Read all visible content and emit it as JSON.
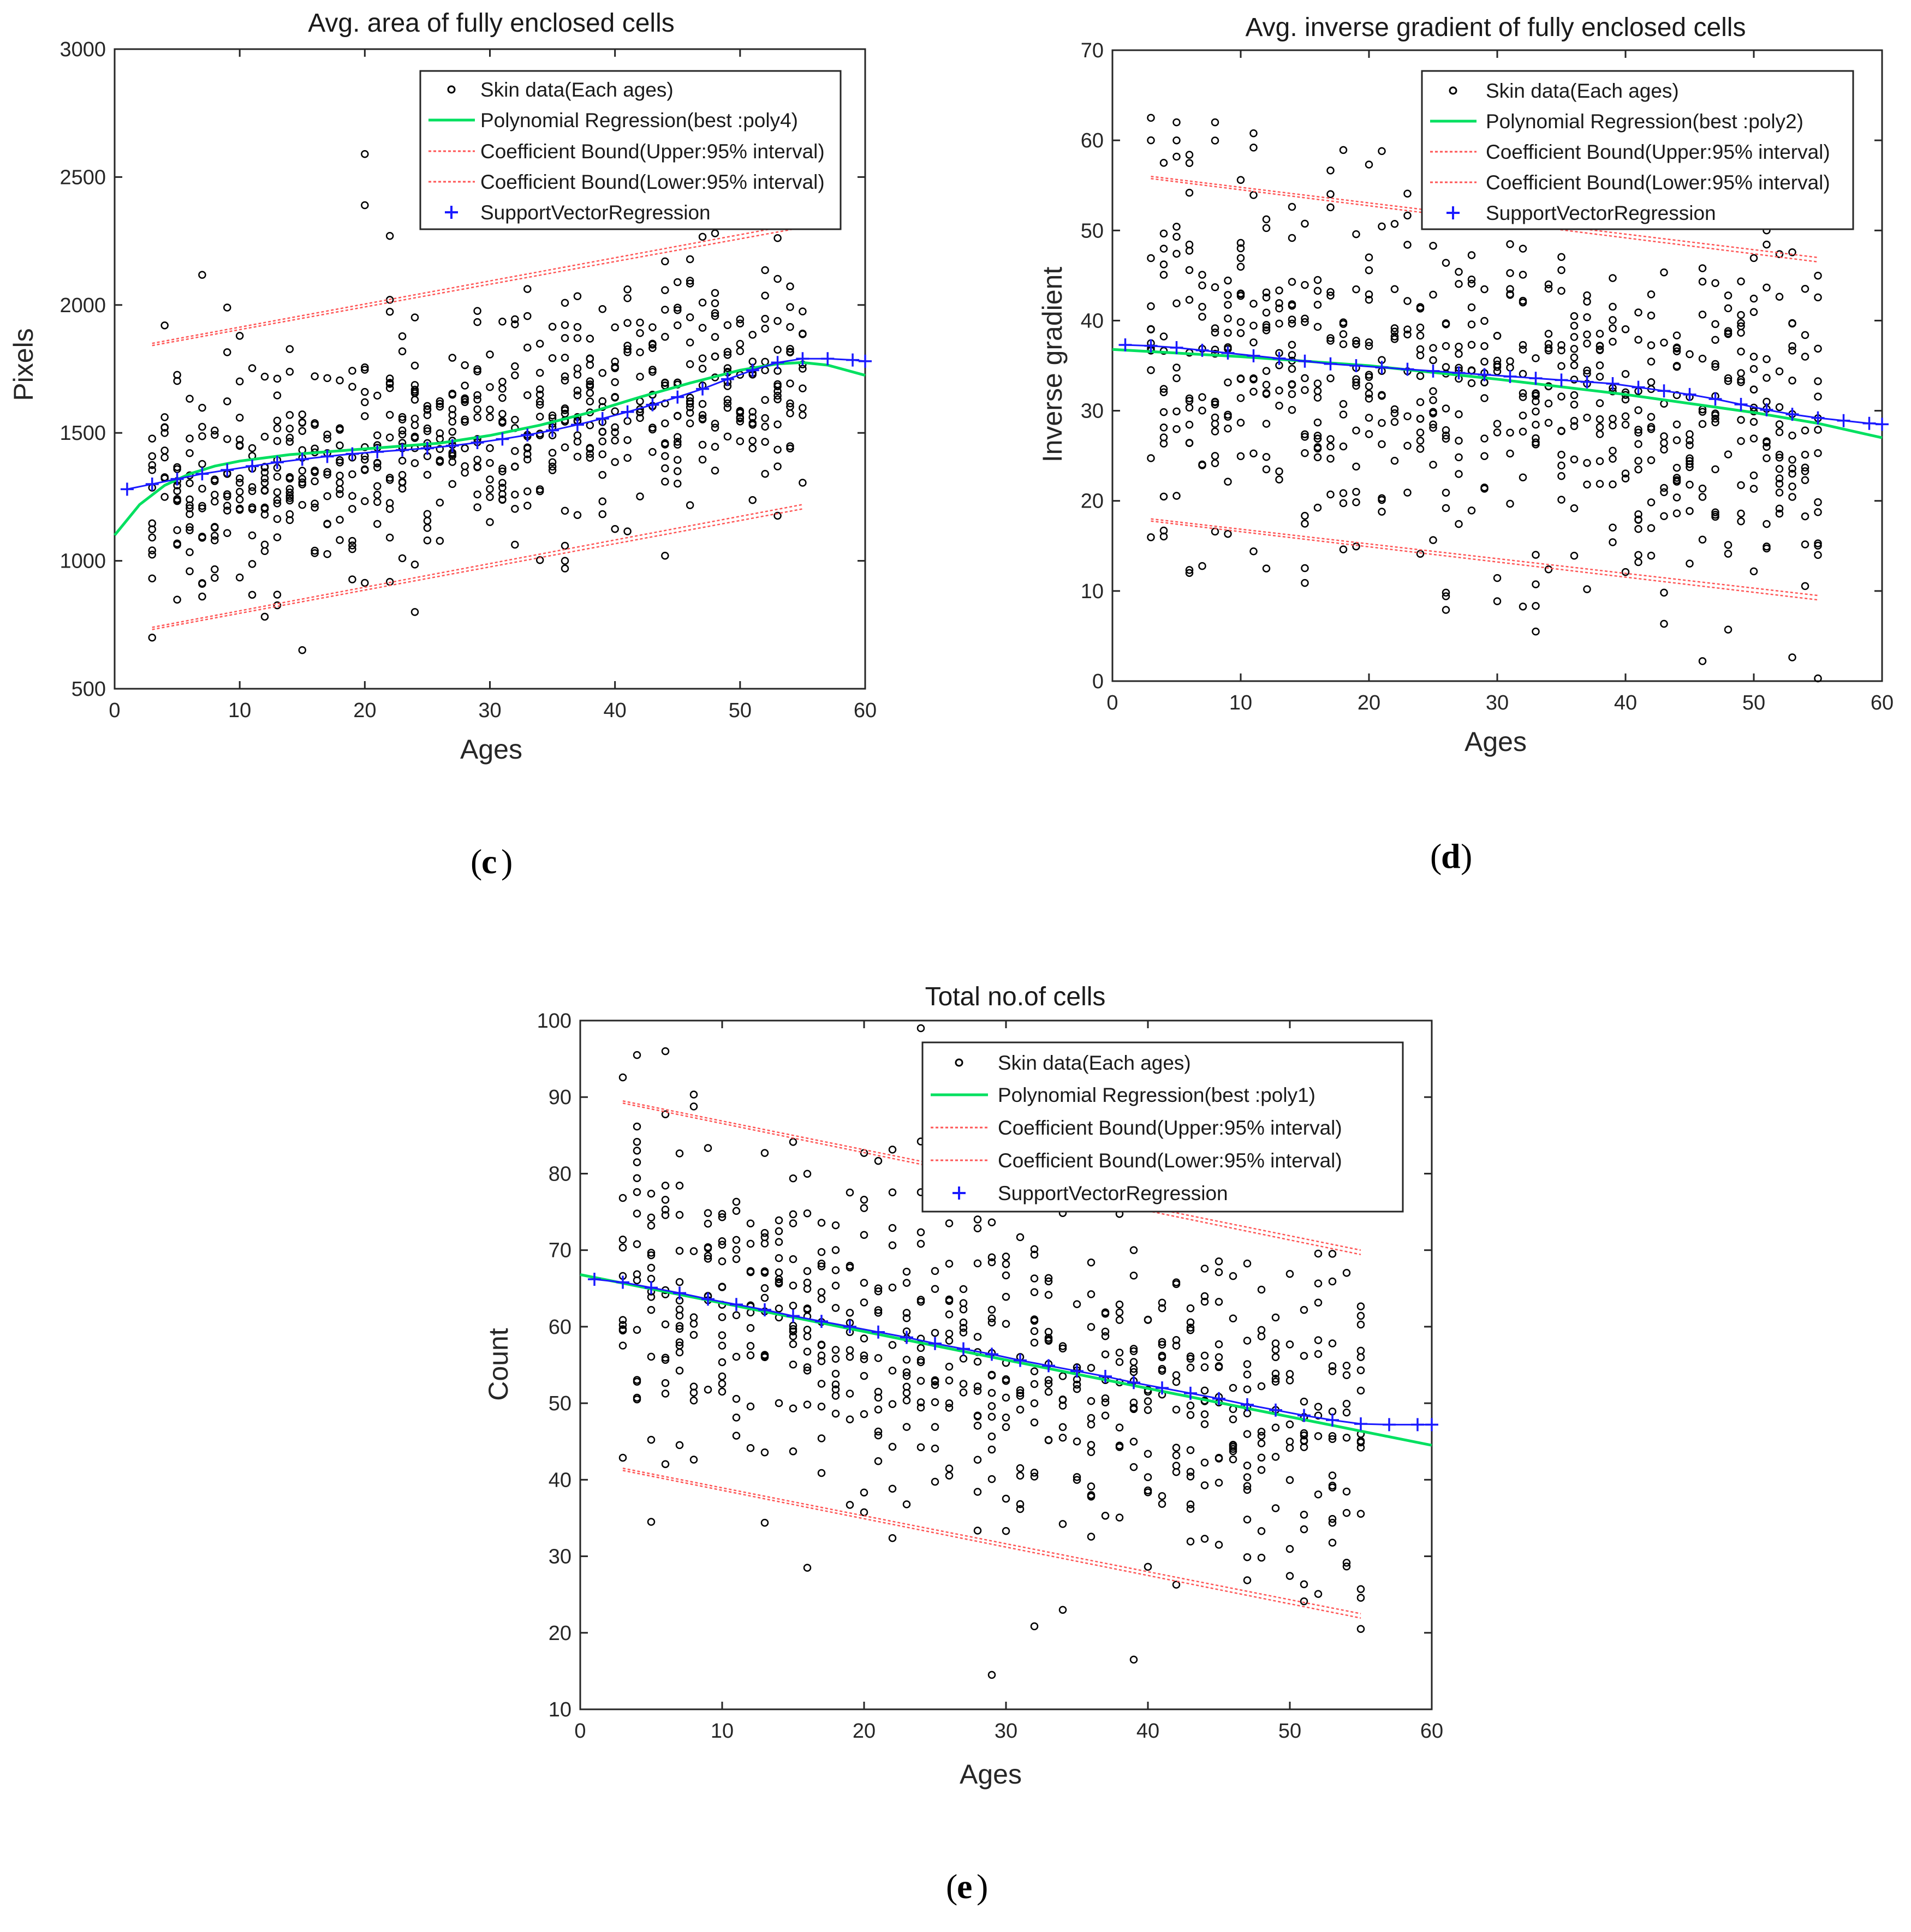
{
  "colors": {
    "scatter": "#000000",
    "poly": "#00e060",
    "bound": "#ff5555",
    "svr": "#1a1aff",
    "axis": "#262626"
  },
  "chart_data": [
    {
      "id": "c",
      "type": "scatter",
      "title": "Avg. area of fully enclosed cells",
      "xlabel": "Ages",
      "ylabel": "Pixels",
      "panel_label": "c",
      "xlim": [
        0,
        60
      ],
      "ylim": [
        500,
        3000
      ],
      "xticks": [
        0,
        10,
        20,
        30,
        40,
        50,
        60
      ],
      "yticks": [
        500,
        1000,
        1500,
        2000,
        2500,
        3000
      ],
      "legend": {
        "position": "top-right",
        "entries": [
          "Skin data(Each ages)",
          "Polynomial Regression(best :poly4)",
          "Coefficient Bound(Upper:95% interval)",
          "Coefficient Bound(Lower:95% interval)",
          "SupportVectorRegression"
        ]
      },
      "scatter_model": {
        "slope": 10,
        "intercept": 1230,
        "sd": 230,
        "seed": 11
      },
      "outliers": [
        [
          20,
          2590
        ],
        [
          20,
          2390
        ],
        [
          22,
          2270
        ],
        [
          4,
          1920
        ],
        [
          9,
          1990
        ],
        [
          24,
          800
        ],
        [
          3,
          700
        ],
        [
          44,
          1020
        ],
        [
          36,
          1000
        ],
        [
          48,
          2280
        ]
      ],
      "polynomial_fit": {
        "x": [
          0,
          2,
          4,
          6,
          8,
          10,
          14,
          18,
          22,
          26,
          30,
          34,
          38,
          42,
          46,
          50,
          53,
          55,
          57,
          60
        ],
        "y": [
          1100,
          1220,
          1295,
          1340,
          1370,
          1390,
          1415,
          1430,
          1445,
          1460,
          1490,
          1530,
          1580,
          1640,
          1695,
          1745,
          1770,
          1775,
          1765,
          1725
        ]
      },
      "upper_bound": {
        "x": [
          3,
          55
        ],
        "y": [
          1850,
          2320
        ]
      },
      "lower_bound": {
        "x": [
          3,
          55
        ],
        "y": [
          740,
          1220
        ]
      },
      "svr": {
        "x": [
          1,
          3,
          5,
          7,
          9,
          11,
          13,
          15,
          17,
          19,
          21,
          23,
          25,
          27,
          29,
          31,
          33,
          35,
          37,
          39,
          41,
          43,
          45,
          47,
          49,
          51,
          53,
          55,
          57,
          59,
          60
        ],
        "y": [
          1280,
          1300,
          1320,
          1340,
          1355,
          1370,
          1385,
          1397,
          1408,
          1418,
          1426,
          1433,
          1440,
          1450,
          1462,
          1476,
          1492,
          1510,
          1532,
          1556,
          1582,
          1610,
          1640,
          1672,
          1710,
          1745,
          1775,
          1790,
          1790,
          1785,
          1780
        ]
      }
    },
    {
      "id": "d",
      "type": "scatter",
      "title": "Avg. inverse gradient of fully enclosed cells",
      "xlabel": "Ages",
      "ylabel": "Inverse gradient",
      "panel_label": "d",
      "xlim": [
        0,
        60
      ],
      "ylim": [
        0,
        70
      ],
      "xticks": [
        0,
        10,
        20,
        30,
        40,
        50,
        60
      ],
      "yticks": [
        0,
        10,
        20,
        30,
        40,
        50,
        60,
        70
      ],
      "legend": {
        "position": "top-right",
        "entries": [
          "Skin data(Each ages)",
          "Polynomial Regression(best :poly2)",
          "Coefficient Bound(Upper:95% interval)",
          "Coefficient Bound(Lower:95% interval)",
          "SupportVectorRegression"
        ]
      },
      "scatter_model": {
        "slope": -0.16,
        "intercept": 37.5,
        "sd": 9.5,
        "seed": 23
      },
      "outliers": [
        [
          3,
          62.5
        ],
        [
          5,
          62
        ],
        [
          8,
          62
        ],
        [
          3,
          60
        ],
        [
          4,
          57.5
        ],
        [
          33,
          5.5
        ],
        [
          55,
          0.3
        ],
        [
          6,
          12
        ],
        [
          12,
          12.5
        ]
      ],
      "polynomial_fit": {
        "x": [
          0,
          10,
          20,
          30,
          40,
          50,
          55,
          60
        ],
        "y": [
          36.8,
          36.0,
          35.0,
          33.5,
          31.8,
          29.8,
          28.6,
          27.0
        ]
      },
      "upper_bound": {
        "x": [
          3,
          55
        ],
        "y": [
          56,
          47
        ]
      },
      "lower_bound": {
        "x": [
          3,
          55
        ],
        "y": [
          18,
          9.5
        ]
      },
      "svr": {
        "x": [
          1,
          3,
          5,
          7,
          9,
          11,
          13,
          15,
          17,
          19,
          21,
          23,
          25,
          27,
          29,
          31,
          33,
          35,
          37,
          39,
          41,
          43,
          45,
          47,
          49,
          51,
          53,
          55,
          57,
          59,
          60
        ],
        "y": [
          37.3,
          37.2,
          37.0,
          36.7,
          36.4,
          36.1,
          35.8,
          35.5,
          35.2,
          35.0,
          34.8,
          34.6,
          34.4,
          34.2,
          34.0,
          33.8,
          33.6,
          33.4,
          33.2,
          33.0,
          32.6,
          32.2,
          31.8,
          31.3,
          30.7,
          30.1,
          29.6,
          29.2,
          28.9,
          28.6,
          28.5
        ]
      }
    },
    {
      "id": "e",
      "type": "scatter",
      "title": "Total no.of cells",
      "xlabel": "Ages",
      "ylabel": "Count",
      "panel_label": "e",
      "xlim": [
        0,
        60
      ],
      "ylim": [
        10,
        100
      ],
      "xticks": [
        0,
        10,
        20,
        30,
        40,
        50,
        60
      ],
      "yticks": [
        10,
        20,
        30,
        40,
        50,
        60,
        70,
        80,
        90,
        100
      ],
      "legend": {
        "position": "top-right",
        "entries": [
          "Skin data(Each ages)",
          "Polynomial Regression(best :poly1)",
          "Coefficient Bound(Upper:95% interval)",
          "Coefficient Bound(Lower:95% interval)",
          "SupportVectorRegression"
        ]
      },
      "scatter_model": {
        "slope": -0.36,
        "intercept": 66.5,
        "sd": 11,
        "seed": 37
      },
      "outliers": [
        [
          4,
          95.5
        ],
        [
          6,
          96
        ],
        [
          24,
          99
        ],
        [
          29,
          14.5
        ],
        [
          39,
          16.5
        ],
        [
          34,
          23
        ],
        [
          55,
          20.5
        ],
        [
          5,
          34.5
        ],
        [
          16,
          28.5
        ]
      ],
      "polynomial_fit": {
        "x": [
          0,
          60
        ],
        "y": [
          66.8,
          44.5
        ]
      },
      "upper_bound": {
        "x": [
          3,
          55
        ],
        "y": [
          89.5,
          70
        ]
      },
      "lower_bound": {
        "x": [
          3,
          55
        ],
        "y": [
          41.5,
          22.5
        ]
      },
      "svr": {
        "x": [
          1,
          3,
          5,
          7,
          9,
          11,
          13,
          15,
          17,
          19,
          21,
          23,
          25,
          27,
          29,
          31,
          33,
          35,
          37,
          39,
          41,
          43,
          45,
          47,
          49,
          51,
          53,
          55,
          57,
          59,
          60
        ],
        "y": [
          66.2,
          65.8,
          65.1,
          64.4,
          63.6,
          62.9,
          62.2,
          61.4,
          60.7,
          60.0,
          59.3,
          58.6,
          57.8,
          57.1,
          56.4,
          55.6,
          54.9,
          54.2,
          53.5,
          52.7,
          52.0,
          51.3,
          50.6,
          49.8,
          49.1,
          48.4,
          47.8,
          47.3,
          47.2,
          47.2,
          47.2
        ]
      }
    }
  ]
}
